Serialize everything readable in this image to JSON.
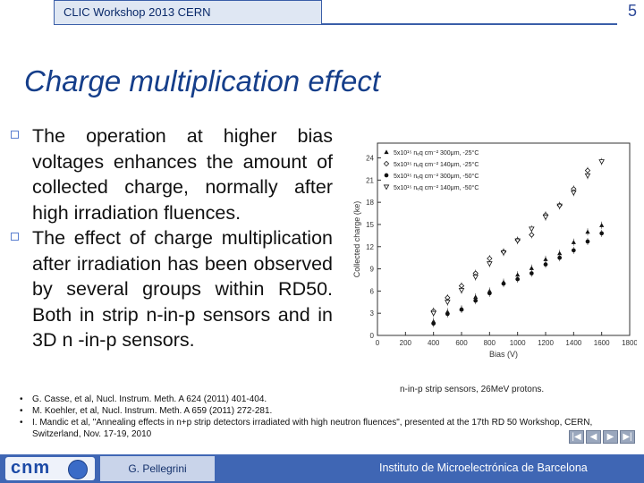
{
  "header": {
    "workshop": "CLIC Workshop 2013 CERN",
    "page_number": "5"
  },
  "title": "Charge multiplication effect",
  "bullets": [
    "The operation at higher bias voltages enhances the amount of collected charge, normally after high irradiation fluences.",
    "The effect of charge multiplication after irradiation has been observed by several groups within RD50. Both in strip n-in-p sensors and in 3D n -in-p sensors."
  ],
  "caption": "n-in-p strip sensors, 26MeV protons.",
  "references": [
    "G. Casse, et al, Nucl. Instrum. Meth. A 624 (2011) 401-404.",
    "M. Koehler, et al, Nucl. Instrum. Meth. A 659 (2011) 272-281.",
    "I. Mandic et al, \"Annealing effects in n+p strip detectors irradiated with high neutron fluences\", presented at the 17th RD 50 Workshop, CERN, Switzerland, Nov. 17-19, 2010"
  ],
  "footer": {
    "logo": "cnm",
    "presenter": "G. Pellegrini",
    "institute": "Instituto de Microelectrónica de Barcelona"
  },
  "nav_icons": [
    "first-icon",
    "prev-icon",
    "next-icon",
    "last-icon"
  ],
  "colors": {
    "title": "#153e8a",
    "footer": "#3f66b4",
    "bullet": "#5b7fd0"
  },
  "chart_data": {
    "type": "scatter",
    "xlabel": "Bias (V)",
    "ylabel": "Collected charge (ke)",
    "xlim": [
      0,
      1800
    ],
    "ylim": [
      0,
      26
    ],
    "xticks": [
      "0",
      "200",
      "400",
      "600",
      "800",
      "1000",
      "1200",
      "1400",
      "1600",
      "1800"
    ],
    "yticks": [
      "0",
      "3",
      "6",
      "9",
      "12",
      "15",
      "18",
      "21",
      "24"
    ],
    "legend_position": "top-left",
    "series": [
      {
        "name": "5x10¹⁵ nₑq cm⁻² 300μm, -25°C",
        "marker": "triangle-filled",
        "x": [
          400,
          500,
          600,
          700,
          800,
          900,
          1000,
          1100,
          1200,
          1300,
          1400,
          1500,
          1600
        ],
        "y": [
          1.9,
          3.2,
          3.6,
          5.2,
          6.0,
          7.2,
          8.2,
          9.1,
          10.3,
          11.1,
          12.6,
          14.0,
          14.9
        ]
      },
      {
        "name": "5x10¹⁵ nₑq cm⁻² 140μm, -25°C",
        "marker": "diamond-open",
        "x": [
          400,
          500,
          600,
          700,
          800,
          900,
          1000,
          1100,
          1200,
          1300,
          1400,
          1500
        ],
        "y": [
          3.3,
          5.1,
          6.7,
          8.4,
          10.4,
          11.3,
          12.9,
          13.6,
          16.3,
          17.6,
          19.8,
          22.3
        ]
      },
      {
        "name": "5x10¹⁵ nₑq cm⁻² 300μm, -50°C",
        "marker": "circle-filled",
        "x": [
          400,
          500,
          600,
          700,
          800,
          900,
          1000,
          1100,
          1200,
          1300,
          1400,
          1500,
          1600
        ],
        "y": [
          1.6,
          2.9,
          3.5,
          4.7,
          5.7,
          7.0,
          7.6,
          8.4,
          9.6,
          10.5,
          11.5,
          12.7,
          13.8
        ]
      },
      {
        "name": "5x10¹⁵ nₑq cm⁻² 140μm, -50°C",
        "marker": "triangle-down-open",
        "x": [
          400,
          500,
          600,
          700,
          800,
          900,
          1000,
          1100,
          1200,
          1300,
          1400,
          1500,
          1600
        ],
        "y": [
          3.0,
          4.5,
          6.1,
          7.9,
          9.7,
          11.2,
          12.8,
          14.4,
          16.0,
          17.5,
          19.3,
          21.6,
          23.5
        ]
      }
    ]
  }
}
